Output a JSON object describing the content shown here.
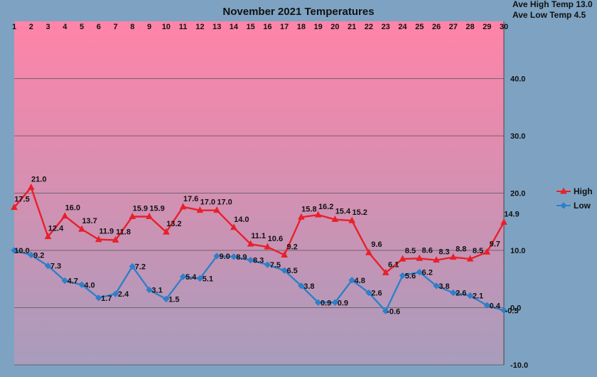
{
  "chart_data": {
    "type": "line",
    "title": "November 2021 Temperatures",
    "stats": [
      "Ave High Temp 13.0",
      "Ave Low Temp 4.5"
    ],
    "x": [
      1,
      2,
      3,
      4,
      5,
      6,
      7,
      8,
      9,
      10,
      11,
      12,
      13,
      14,
      15,
      16,
      17,
      18,
      19,
      20,
      21,
      22,
      23,
      24,
      25,
      26,
      27,
      28,
      29,
      30
    ],
    "x_tick_labels": [
      "1",
      "2",
      "3",
      "4",
      "5",
      "6",
      "7",
      "8",
      "9",
      "10",
      "11",
      "12",
      "13",
      "14",
      "15",
      "16",
      "17",
      "18",
      "19",
      "20",
      "21",
      "22",
      "23",
      "24",
      "25",
      "26",
      "27",
      "28",
      "29",
      "30"
    ],
    "y_tick_labels": [
      "40.0",
      "30.0",
      "20.0",
      "10.0",
      "0.0",
      "-10.0"
    ],
    "ylim": [
      -10,
      50
    ],
    "y_gridlines": [
      40,
      30,
      20,
      10,
      0,
      -10
    ],
    "series": [
      {
        "name": "High",
        "color": "#e8202a",
        "marker": "triangle",
        "values": [
          17.5,
          21.0,
          12.4,
          16.0,
          13.7,
          11.9,
          11.8,
          15.9,
          15.9,
          13.2,
          17.6,
          17.0,
          17.0,
          14.0,
          11.1,
          10.6,
          9.2,
          15.8,
          16.2,
          15.4,
          15.2,
          9.6,
          6.1,
          8.5,
          8.6,
          8.3,
          8.8,
          8.5,
          9.7,
          14.9
        ],
        "labels": [
          "17.5",
          "21.0",
          "12.4",
          "16.0",
          "13.7",
          "11.9",
          "11.8",
          "15.9",
          "15.9",
          "13.2",
          "17.6",
          "17.0",
          "17.0",
          "14.0",
          "11.1",
          "10.6",
          "9.2",
          "15.8",
          "16.2",
          "15.4",
          "15.2",
          "9.6",
          "6.1",
          "8.5",
          "8.6",
          "8.3",
          "8.8",
          "8.5",
          "9.7",
          "14.9"
        ]
      },
      {
        "name": "Low",
        "color": "#2f7fc9",
        "marker": "diamond",
        "values": [
          10.0,
          9.2,
          7.3,
          4.7,
          4.0,
          1.7,
          2.4,
          7.2,
          3.1,
          1.5,
          5.4,
          5.1,
          9.0,
          8.9,
          8.3,
          7.5,
          6.5,
          3.8,
          0.9,
          0.9,
          4.8,
          2.6,
          -0.6,
          5.6,
          6.2,
          3.8,
          2.6,
          2.1,
          0.4,
          -0.5
        ],
        "labels": [
          "10.0",
          "9.2",
          "7.3",
          "4.7",
          "4.0",
          "1.7",
          "2.4",
          "7.2",
          "3.1",
          "1.5",
          "5.4",
          "5.1",
          "9.0",
          "8.9",
          "8.3",
          "7.5",
          "6.5",
          "3.8",
          "0.9",
          "0.9",
          "4.8",
          "2.6",
          "-0.6",
          "5.6",
          "6.2",
          "3.8",
          "2.6",
          "2.1",
          "0.4",
          "-0.5"
        ]
      }
    ],
    "legend": "right",
    "grid": true,
    "background_gradient": [
      "#ff84a8",
      "#a89cbc"
    ]
  }
}
